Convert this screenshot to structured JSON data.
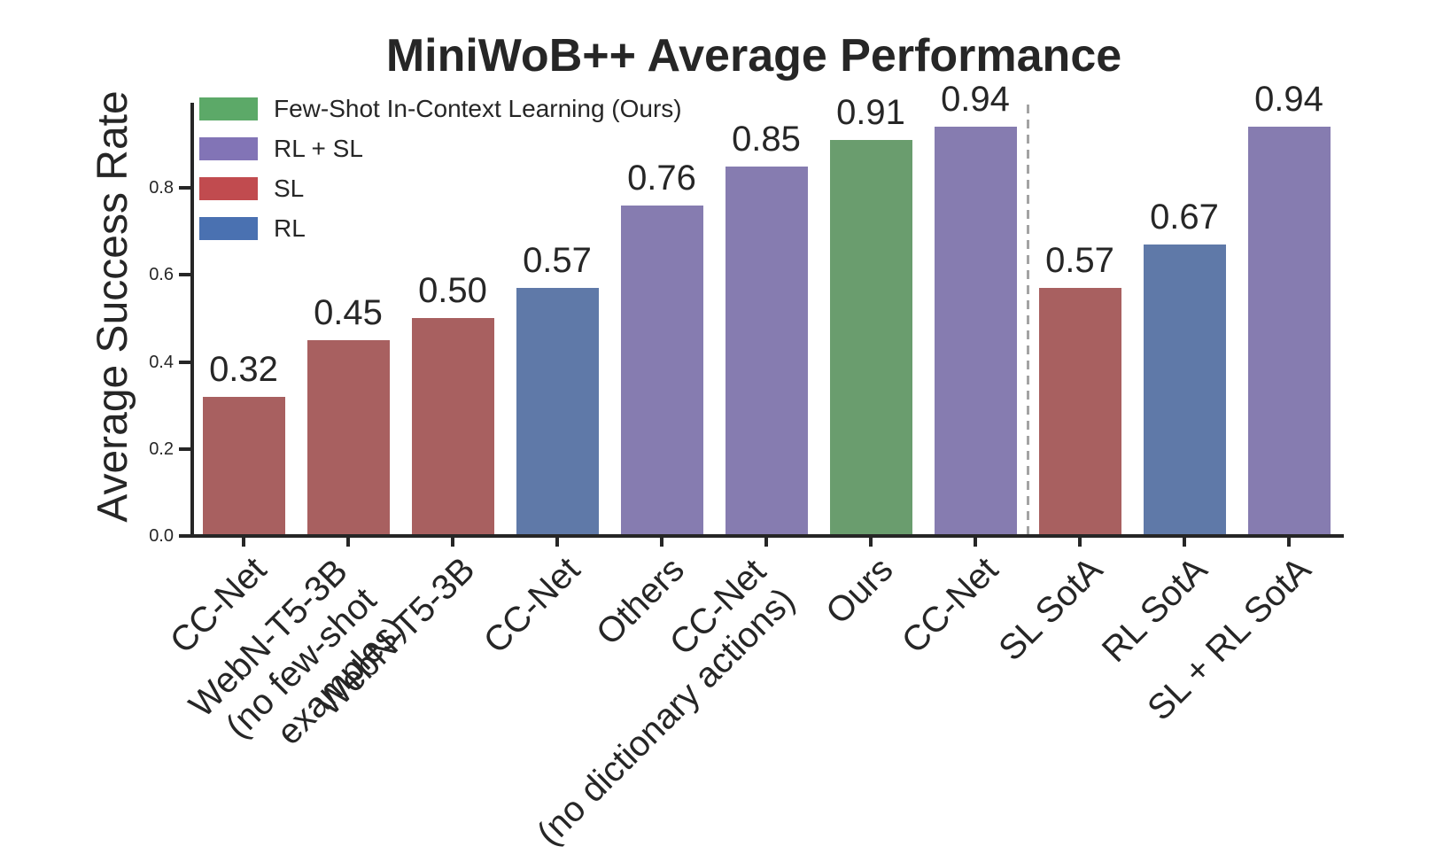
{
  "chart_data": {
    "type": "bar",
    "title": "MiniWoB++ Average Performance",
    "ylabel": "Average Success Rate",
    "ylim": [
      0,
      1.0
    ],
    "yticks": [
      "0.0",
      "0.2",
      "0.4",
      "0.6",
      "0.8"
    ],
    "ytick_values": [
      0,
      0.2,
      0.4,
      0.6,
      0.8
    ],
    "grid": false,
    "legend_position": "upper left",
    "separator_after_index": 7,
    "groups": [
      {
        "label": "Few-Shot In-Context Learning (Ours)",
        "key": "green"
      },
      {
        "label": "RL + SL",
        "key": "purple"
      },
      {
        "label": "SL",
        "key": "red"
      },
      {
        "label": "RL",
        "key": "blue"
      }
    ],
    "bars": [
      {
        "x_label": "CC-Net",
        "value": 0.32,
        "display_value": "0.32",
        "group": "SL"
      },
      {
        "x_label": "WebN-T5-3B\n(no few-shot examples)",
        "value": 0.45,
        "display_value": "0.45",
        "group": "SL"
      },
      {
        "x_label": "WebN-T5-3B",
        "value": 0.5,
        "display_value": "0.50",
        "group": "SL"
      },
      {
        "x_label": "CC-Net",
        "value": 0.57,
        "display_value": "0.57",
        "group": "RL"
      },
      {
        "x_label": "Others",
        "value": 0.76,
        "display_value": "0.76",
        "group": "RL + SL"
      },
      {
        "x_label": "CC-Net\n(no dictionary actions)",
        "value": 0.85,
        "display_value": "0.85",
        "group": "RL + SL"
      },
      {
        "x_label": "Ours",
        "value": 0.91,
        "display_value": "0.91",
        "group": "Few-Shot In-Context Learning (Ours)"
      },
      {
        "x_label": "CC-Net",
        "value": 0.94,
        "display_value": "0.94",
        "group": "RL + SL"
      },
      {
        "x_label": "SL SotA",
        "value": 0.57,
        "display_value": "0.57",
        "group": "SL"
      },
      {
        "x_label": "RL SotA",
        "value": 0.67,
        "display_value": "0.67",
        "group": "RL"
      },
      {
        "x_label": "SL + RL SotA",
        "value": 0.94,
        "display_value": "0.94",
        "group": "RL + SL"
      }
    ]
  },
  "colors": {
    "legend": {
      "green": "#5ca968",
      "purple": "#8274b6",
      "red": "#c14b4f",
      "blue": "#4a71b1"
    },
    "bars": {
      "green": "#6a9d6e",
      "purple": "#867cb0",
      "red": "#a86060",
      "blue": "#5f79a8"
    },
    "separator": "#a3a3a3",
    "axis": "#262626",
    "text": "#262626"
  }
}
